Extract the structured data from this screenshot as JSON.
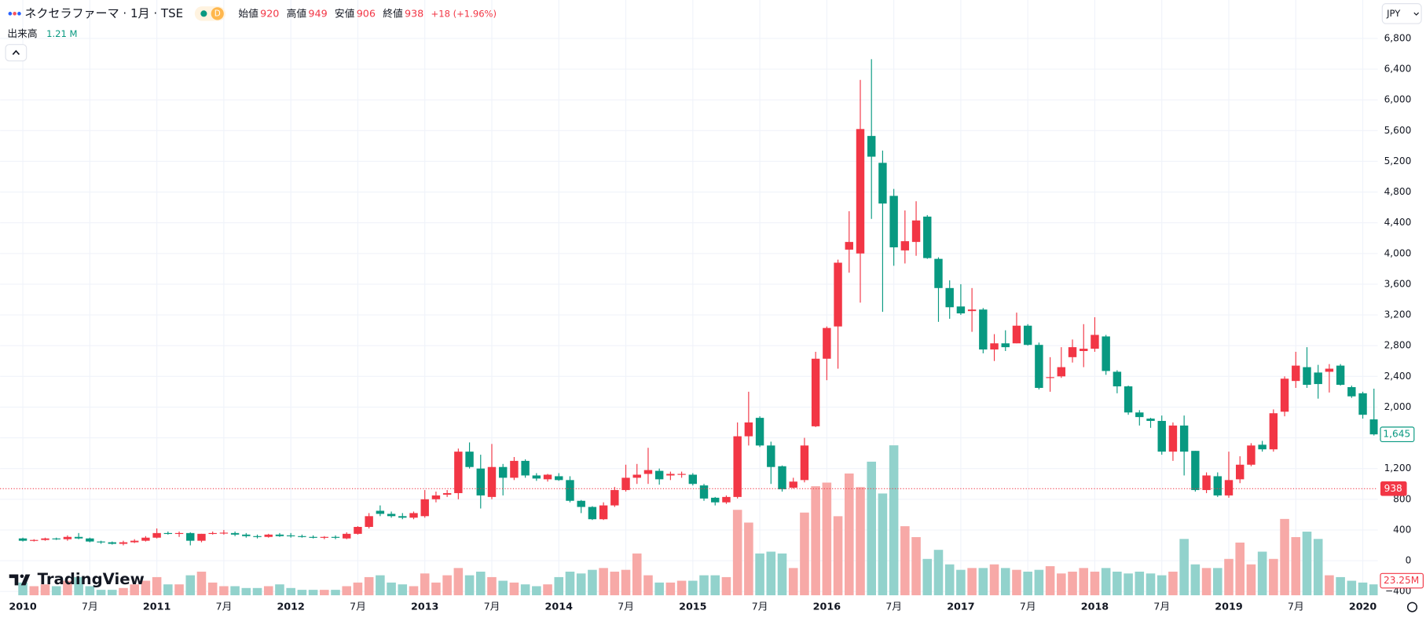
{
  "header": {
    "symbol": "ネクセラファーマ · 1月 · TSE",
    "interval_badge": "D",
    "open_label": "始値",
    "open": 920,
    "high_label": "高値",
    "high": 949,
    "low_label": "安値",
    "low": 906,
    "close_label": "終値",
    "close": 938,
    "change": "+18 (+1.96%)",
    "volume_label": "出来高",
    "volume": "1.21 M"
  },
  "currency": "JPY",
  "logo": "TradingView",
  "chart_data": {
    "type": "candlestick",
    "x": [
      "2010-01",
      "2010-02",
      "2010-03",
      "2010-04",
      "2010-05",
      "2010-06",
      "2010-07",
      "2010-08",
      "2010-09",
      "2010-10",
      "2010-11",
      "2010-12",
      "2011-01",
      "2011-02",
      "2011-03",
      "2011-04",
      "2011-05",
      "2011-06",
      "2011-07",
      "2011-08",
      "2011-09",
      "2011-10",
      "2011-11",
      "2011-12",
      "2012-01",
      "2012-02",
      "2012-03",
      "2012-04",
      "2012-05",
      "2012-06",
      "2012-07",
      "2012-08",
      "2012-09",
      "2012-10",
      "2012-11",
      "2012-12",
      "2013-01",
      "2013-02",
      "2013-03",
      "2013-04",
      "2013-05",
      "2013-06",
      "2013-07",
      "2013-08",
      "2013-09",
      "2013-10",
      "2013-11",
      "2013-12",
      "2014-01",
      "2014-02",
      "2014-03",
      "2014-04",
      "2014-05",
      "2014-06",
      "2014-07",
      "2014-08",
      "2014-09",
      "2014-10",
      "2014-11",
      "2014-12",
      "2015-01",
      "2015-02",
      "2015-03",
      "2015-04",
      "2015-05",
      "2015-06",
      "2015-07",
      "2015-08",
      "2015-09",
      "2015-10",
      "2015-11",
      "2015-12",
      "2016-01",
      "2016-02",
      "2016-03",
      "2016-04",
      "2016-05",
      "2016-06",
      "2016-07",
      "2016-08",
      "2016-09",
      "2016-10",
      "2016-11",
      "2016-12",
      "2017-01",
      "2017-02",
      "2017-03",
      "2017-04",
      "2017-05",
      "2017-06",
      "2017-07",
      "2017-08",
      "2017-09",
      "2017-10",
      "2017-11",
      "2017-12",
      "2018-01",
      "2018-02",
      "2018-03",
      "2018-04",
      "2018-05",
      "2018-06",
      "2018-07",
      "2018-08",
      "2018-09",
      "2018-10",
      "2018-11",
      "2018-12",
      "2019-01",
      "2019-02",
      "2019-03",
      "2019-04",
      "2019-05",
      "2019-06",
      "2019-07",
      "2019-08",
      "2019-09",
      "2019-10",
      "2019-11",
      "2019-12",
      "2020-01",
      "2020-02"
    ],
    "open": [
      290,
      260,
      270,
      290,
      280,
      310,
      290,
      250,
      240,
      220,
      240,
      260,
      300,
      360,
      350,
      360,
      260,
      350,
      360,
      360,
      340,
      320,
      310,
      340,
      330,
      320,
      310,
      300,
      310,
      290,
      350,
      440,
      650,
      610,
      580,
      560,
      580,
      800,
      860,
      880,
      1420,
      1200,
      830,
      1220,
      1080,
      1300,
      1110,
      1060,
      1100,
      1050,
      780,
      700,
      540,
      720,
      920,
      1080,
      1130,
      1170,
      1110,
      1130,
      1120,
      980,
      820,
      760,
      830,
      1620,
      1860,
      1500,
      1230,
      950,
      1050,
      1750,
      2630,
      3050,
      4050,
      4000,
      5530,
      5180,
      4750,
      4040,
      4150,
      4480,
      3930,
      3550,
      3310,
      3250,
      3270,
      2750,
      2830,
      2830,
      3060,
      2810,
      2380,
      2400,
      2650,
      2730,
      2760,
      2920,
      2460,
      2270,
      1930,
      1850,
      1820,
      1420,
      1760,
      1430,
      920,
      1100,
      850,
      1060,
      1250,
      1510,
      1450,
      1940,
      2340,
      2520,
      2450,
      2460,
      2540,
      2260,
      2180,
      1840
    ],
    "high": [
      300,
      280,
      300,
      300,
      330,
      360,
      300,
      260,
      250,
      260,
      280,
      320,
      420,
      380,
      380,
      370,
      350,
      380,
      400,
      380,
      360,
      340,
      350,
      360,
      360,
      340,
      330,
      320,
      330,
      370,
      450,
      620,
      720,
      640,
      620,
      640,
      920,
      900,
      920,
      1460,
      1540,
      1380,
      1520,
      1260,
      1350,
      1320,
      1140,
      1130,
      1140,
      1100,
      790,
      710,
      760,
      960,
      1250,
      1260,
      1470,
      1200,
      1160,
      1160,
      1140,
      1000,
      830,
      850,
      1800,
      2200,
      1880,
      1550,
      1240,
      1080,
      1600,
      2720,
      3050,
      3920,
      4550,
      6260,
      6530,
      5340,
      4840,
      4560,
      4680,
      4500,
      3950,
      3650,
      3600,
      3550,
      3290,
      2950,
      3000,
      3230,
      3080,
      2840,
      2650,
      2780,
      2880,
      3080,
      3170,
      2940,
      2480,
      2280,
      1960,
      1860,
      1890,
      1800,
      1890,
      1430,
      1150,
      1150,
      1420,
      1360,
      1530,
      1560,
      1970,
      2400,
      2720,
      2780,
      2550,
      2560,
      2560,
      2280,
      2200,
      2240
    ],
    "low": [
      250,
      250,
      260,
      270,
      260,
      280,
      240,
      220,
      210,
      200,
      230,
      250,
      290,
      340,
      310,
      200,
      240,
      340,
      340,
      320,
      300,
      290,
      300,
      310,
      300,
      300,
      290,
      280,
      280,
      280,
      340,
      420,
      580,
      560,
      540,
      540,
      560,
      760,
      830,
      800,
      1200,
      680,
      800,
      850,
      1050,
      1080,
      1040,
      1030,
      1040,
      760,
      620,
      530,
      530,
      700,
      900,
      1000,
      1000,
      990,
      1050,
      1080,
      980,
      780,
      720,
      740,
      810,
      1500,
      1480,
      1000,
      900,
      940,
      1020,
      1740,
      2350,
      2500,
      3750,
      3360,
      4450,
      3240,
      3840,
      3870,
      3970,
      3930,
      3110,
      3150,
      3200,
      2980,
      2700,
      2600,
      2730,
      2830,
      2800,
      2230,
      2200,
      2380,
      2580,
      2520,
      2720,
      2420,
      2180,
      1900,
      1760,
      1730,
      1380,
      1300,
      1110,
      900,
      880,
      830,
      820,
      1010,
      1230,
      1420,
      1420,
      1880,
      2250,
      2250,
      2110,
      2190,
      2280,
      2120,
      1850,
      1630
    ],
    "close": [
      260,
      270,
      290,
      280,
      310,
      290,
      250,
      240,
      220,
      240,
      260,
      300,
      360,
      350,
      360,
      260,
      350,
      360,
      365,
      340,
      320,
      310,
      340,
      320,
      320,
      310,
      300,
      310,
      300,
      350,
      440,
      580,
      610,
      580,
      560,
      620,
      800,
      850,
      880,
      1420,
      1220,
      850,
      1220,
      1080,
      1300,
      1110,
      1070,
      1120,
      1050,
      780,
      700,
      540,
      720,
      920,
      1080,
      1120,
      1180,
      1060,
      1130,
      1130,
      1000,
      810,
      760,
      830,
      1620,
      1800,
      1500,
      1220,
      930,
      1030,
      1500,
      2630,
      3030,
      3880,
      4150,
      5620,
      5260,
      4650,
      4080,
      4160,
      4430,
      3940,
      3550,
      3300,
      3220,
      3270,
      2750,
      2830,
      2780,
      3060,
      2810,
      2250,
      2390,
      2520,
      2780,
      2760,
      2940,
      2470,
      2270,
      1930,
      1870,
      1820,
      1420,
      1760,
      1420,
      920,
      1110,
      850,
      1050,
      1250,
      1500,
      1450,
      1920,
      2370,
      2540,
      2290,
      2300,
      2500,
      2290,
      2140,
      1900,
      1645
    ],
    "volume": [
      14,
      10,
      12,
      10,
      16,
      20,
      10,
      6,
      6,
      8,
      12,
      16,
      20,
      12,
      12,
      22,
      26,
      14,
      10,
      10,
      8,
      8,
      10,
      12,
      8,
      6,
      6,
      6,
      6,
      10,
      14,
      20,
      22,
      14,
      12,
      10,
      24,
      14,
      22,
      30,
      22,
      26,
      20,
      16,
      14,
      12,
      10,
      12,
      20,
      26,
      24,
      28,
      30,
      26,
      28,
      46,
      22,
      14,
      14,
      16,
      16,
      22,
      22,
      20,
      94,
      80,
      46,
      48,
      46,
      30,
      91,
      120,
      124,
      87,
      134,
      119,
      147,
      112,
      165,
      76,
      64,
      40,
      50,
      34,
      28,
      30,
      30,
      34,
      30,
      28,
      26,
      28,
      32,
      24,
      26,
      30,
      26,
      30,
      26,
      24,
      26,
      24,
      22,
      26,
      62,
      34,
      30,
      30,
      40,
      58,
      34,
      48,
      40,
      84,
      64,
      70,
      62,
      22,
      20,
      16,
      14,
      12
    ],
    "last_close_label": "1,645",
    "volume_badge": "23.25M",
    "up_color": "#f23645",
    "down_color": "#089981",
    "up_volume_color": "#f7a9a7",
    "down_volume_color": "#92d2cc",
    "ylim": [
      -450,
      7300
    ],
    "yticks": [
      {
        "value": -400,
        "label": "−400"
      },
      0,
      400,
      800,
      {
        "value": 1200,
        "label": "1,200"
      },
      {
        "value": 1600,
        "label": "1,600"
      },
      {
        "value": 2000,
        "label": "2,000"
      },
      {
        "value": 2400,
        "label": "2,400"
      },
      {
        "value": 2800,
        "label": "2,800"
      },
      {
        "value": 3200,
        "label": "3,200"
      },
      {
        "value": 3600,
        "label": "3,600"
      },
      {
        "value": 4000,
        "label": "4,000"
      },
      {
        "value": 4400,
        "label": "4,400"
      },
      {
        "value": 4800,
        "label": "4,800"
      },
      {
        "value": 5200,
        "label": "5,200"
      },
      {
        "value": 5600,
        "label": "5,600"
      },
      {
        "value": 6000,
        "label": "6,000"
      },
      {
        "value": 6400,
        "label": "6,400"
      },
      {
        "value": 6800,
        "label": "6,800"
      }
    ],
    "xticks": [
      {
        "value": "2010-01",
        "label": "2010"
      },
      {
        "value": "2010-07",
        "label": "7月"
      },
      {
        "value": "2011-01",
        "label": "2011"
      },
      {
        "value": "2011-07",
        "label": "7月"
      },
      {
        "value": "2012-01",
        "label": "2012"
      },
      {
        "value": "2012-07",
        "label": "7月"
      },
      {
        "value": "2013-01",
        "label": "2013"
      },
      {
        "value": "2013-07",
        "label": "7月"
      },
      {
        "value": "2014-01",
        "label": "2014"
      },
      {
        "value": "2014-07",
        "label": "7月"
      },
      {
        "value": "2015-01",
        "label": "2015"
      },
      {
        "value": "2015-07",
        "label": "7月"
      },
      {
        "value": "2016-01",
        "label": "2016"
      },
      {
        "value": "2016-07",
        "label": "7月"
      },
      {
        "value": "2017-01",
        "label": "2017"
      },
      {
        "value": "2017-07",
        "label": "7月"
      },
      {
        "value": "2018-01",
        "label": "2018"
      },
      {
        "value": "2018-07",
        "label": "7月"
      },
      {
        "value": "2019-01",
        "label": "2019"
      },
      {
        "value": "2019-07",
        "label": "7月"
      },
      {
        "value": "2020-01",
        "label": "2020"
      }
    ],
    "grid": true
  }
}
